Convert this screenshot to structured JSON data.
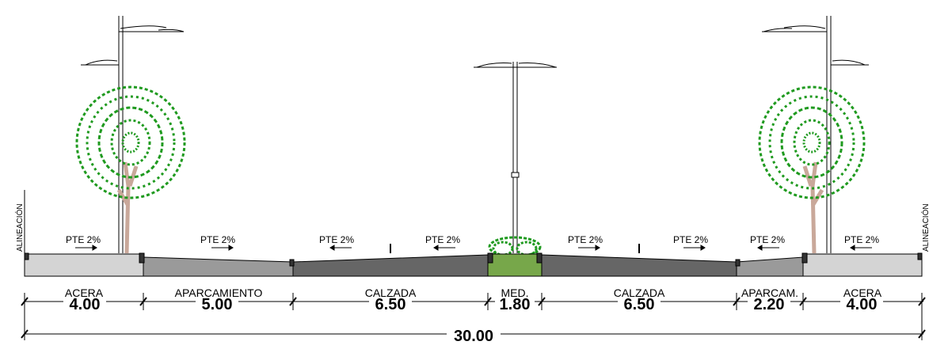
{
  "labels": {
    "alineacion_left": "ALINEACIÓN",
    "alineacion_right": "ALINEACIÓN"
  },
  "slopes": [
    "PTE 2%",
    "PTE 2%",
    "PTE 2%",
    "PTE 2%",
    "PTE 2%",
    "PTE 2%",
    "PTE 2%",
    "PTE 2%"
  ],
  "sections": [
    {
      "name": "ACERA",
      "width": "4.00"
    },
    {
      "name": "APARCAMIENTO",
      "width": "5.00"
    },
    {
      "name": "CALZADA",
      "width": "6.50"
    },
    {
      "name": "MED.",
      "width": "1.80"
    },
    {
      "name": "CALZADA",
      "width": "6.50"
    },
    {
      "name": "APARCAM.",
      "width": "2.20"
    },
    {
      "name": "ACERA",
      "width": "4.00"
    }
  ],
  "total_width": "30.00",
  "colors": {
    "sidewalk": "#d4d4d4",
    "parking": "#9a9a9a",
    "roadway": "#666666",
    "median": "#77a74a",
    "foliage": "#1f9a1f",
    "trunk": "#c9a89a"
  }
}
